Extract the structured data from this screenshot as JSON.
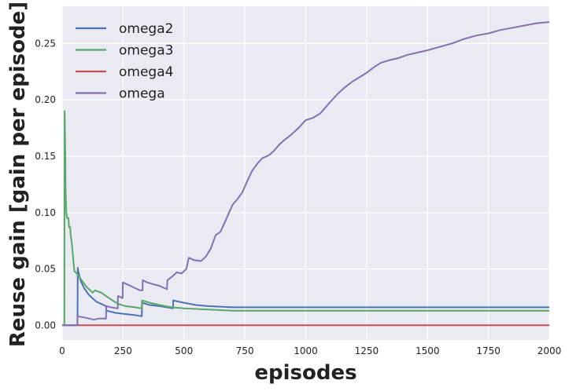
{
  "chart_data": {
    "type": "line",
    "title": "",
    "xlabel": "episodes",
    "ylabel": "Reuse gain [gain per episode]",
    "xlim": [
      0,
      2000
    ],
    "ylim": [
      -0.013,
      0.283
    ],
    "xticks": [
      0,
      250,
      500,
      750,
      1000,
      1250,
      1500,
      1750,
      2000
    ],
    "yticks": [
      0.0,
      0.05,
      0.1,
      0.15,
      0.2,
      0.25
    ],
    "xtick_labels": [
      "0",
      "250",
      "500",
      "750",
      "1000",
      "1250",
      "1500",
      "1750",
      "2000"
    ],
    "ytick_labels": [
      "0.00",
      "0.05",
      "0.10",
      "0.15",
      "0.20",
      "0.25"
    ],
    "grid": true,
    "legend_position": "top-left",
    "background": "#eaeaf2",
    "series": [
      {
        "name": "omega2",
        "color": "#4c72b0",
        "points": [
          [
            0,
            0.0
          ],
          [
            63,
            0.0
          ],
          [
            64,
            0.051
          ],
          [
            66,
            0.048
          ],
          [
            75,
            0.04
          ],
          [
            90,
            0.033
          ],
          [
            110,
            0.027
          ],
          [
            140,
            0.021
          ],
          [
            180,
            0.017
          ],
          [
            182,
            0.013
          ],
          [
            220,
            0.011
          ],
          [
            260,
            0.01
          ],
          [
            300,
            0.009
          ],
          [
            327,
            0.008
          ],
          [
            328,
            0.02
          ],
          [
            360,
            0.018
          ],
          [
            400,
            0.017
          ],
          [
            430,
            0.016
          ],
          [
            455,
            0.015
          ],
          [
            456,
            0.022
          ],
          [
            500,
            0.02
          ],
          [
            550,
            0.018
          ],
          [
            600,
            0.017
          ],
          [
            700,
            0.016
          ],
          [
            800,
            0.016
          ],
          [
            1000,
            0.016
          ],
          [
            1500,
            0.016
          ],
          [
            2000,
            0.016
          ]
        ]
      },
      {
        "name": "omega3",
        "color": "#55a868",
        "points": [
          [
            0,
            0.0
          ],
          [
            9,
            0.0
          ],
          [
            10,
            0.19
          ],
          [
            13,
            0.15
          ],
          [
            14,
            0.12
          ],
          [
            17,
            0.1
          ],
          [
            20,
            0.095
          ],
          [
            26,
            0.095
          ],
          [
            28,
            0.087
          ],
          [
            33,
            0.087
          ],
          [
            35,
            0.08
          ],
          [
            40,
            0.072
          ],
          [
            45,
            0.06
          ],
          [
            50,
            0.048
          ],
          [
            60,
            0.046
          ],
          [
            70,
            0.043
          ],
          [
            80,
            0.04
          ],
          [
            100,
            0.034
          ],
          [
            125,
            0.029
          ],
          [
            135,
            0.031
          ],
          [
            160,
            0.029
          ],
          [
            180,
            0.026
          ],
          [
            200,
            0.023
          ],
          [
            230,
            0.019
          ],
          [
            260,
            0.017
          ],
          [
            300,
            0.016
          ],
          [
            327,
            0.015
          ],
          [
            328,
            0.022
          ],
          [
            360,
            0.02
          ],
          [
            400,
            0.018
          ],
          [
            450,
            0.016
          ],
          [
            500,
            0.015
          ],
          [
            600,
            0.014
          ],
          [
            700,
            0.013
          ],
          [
            800,
            0.013
          ],
          [
            1000,
            0.013
          ],
          [
            2000,
            0.013
          ]
        ]
      },
      {
        "name": "omega4",
        "color": "#c44e52",
        "points": [
          [
            0,
            0.0
          ],
          [
            2000,
            0.0
          ]
        ]
      },
      {
        "name": "omega",
        "color": "#8172b2",
        "points": [
          [
            0,
            0.0
          ],
          [
            62,
            0.0
          ],
          [
            63,
            0.008
          ],
          [
            90,
            0.007
          ],
          [
            110,
            0.006
          ],
          [
            130,
            0.005
          ],
          [
            150,
            0.006
          ],
          [
            180,
            0.006
          ],
          [
            181,
            0.017
          ],
          [
            200,
            0.016
          ],
          [
            228,
            0.015
          ],
          [
            229,
            0.026
          ],
          [
            240,
            0.025
          ],
          [
            248,
            0.024
          ],
          [
            249,
            0.038
          ],
          [
            270,
            0.036
          ],
          [
            300,
            0.033
          ],
          [
            320,
            0.031
          ],
          [
            330,
            0.031
          ],
          [
            331,
            0.04
          ],
          [
            350,
            0.038
          ],
          [
            380,
            0.036
          ],
          [
            400,
            0.035
          ],
          [
            430,
            0.032
          ],
          [
            432,
            0.04
          ],
          [
            450,
            0.043
          ],
          [
            470,
            0.047
          ],
          [
            490,
            0.046
          ],
          [
            510,
            0.05
          ],
          [
            520,
            0.06
          ],
          [
            540,
            0.058
          ],
          [
            570,
            0.057
          ],
          [
            590,
            0.061
          ],
          [
            610,
            0.068
          ],
          [
            630,
            0.08
          ],
          [
            650,
            0.083
          ],
          [
            665,
            0.09
          ],
          [
            685,
            0.1
          ],
          [
            700,
            0.107
          ],
          [
            720,
            0.112
          ],
          [
            740,
            0.118
          ],
          [
            760,
            0.128
          ],
          [
            780,
            0.137
          ],
          [
            800,
            0.143
          ],
          [
            820,
            0.148
          ],
          [
            850,
            0.151
          ],
          [
            870,
            0.155
          ],
          [
            890,
            0.16
          ],
          [
            910,
            0.164
          ],
          [
            940,
            0.169
          ],
          [
            970,
            0.175
          ],
          [
            1000,
            0.182
          ],
          [
            1030,
            0.184
          ],
          [
            1060,
            0.188
          ],
          [
            1080,
            0.193
          ],
          [
            1100,
            0.198
          ],
          [
            1130,
            0.205
          ],
          [
            1160,
            0.211
          ],
          [
            1190,
            0.216
          ],
          [
            1220,
            0.22
          ],
          [
            1250,
            0.224
          ],
          [
            1280,
            0.229
          ],
          [
            1310,
            0.233
          ],
          [
            1340,
            0.235
          ],
          [
            1380,
            0.237
          ],
          [
            1420,
            0.24
          ],
          [
            1460,
            0.242
          ],
          [
            1500,
            0.244
          ],
          [
            1550,
            0.247
          ],
          [
            1600,
            0.25
          ],
          [
            1650,
            0.254
          ],
          [
            1700,
            0.257
          ],
          [
            1750,
            0.259
          ],
          [
            1800,
            0.262
          ],
          [
            1850,
            0.264
          ],
          [
            1900,
            0.266
          ],
          [
            1950,
            0.268
          ],
          [
            2000,
            0.269
          ]
        ]
      }
    ]
  }
}
